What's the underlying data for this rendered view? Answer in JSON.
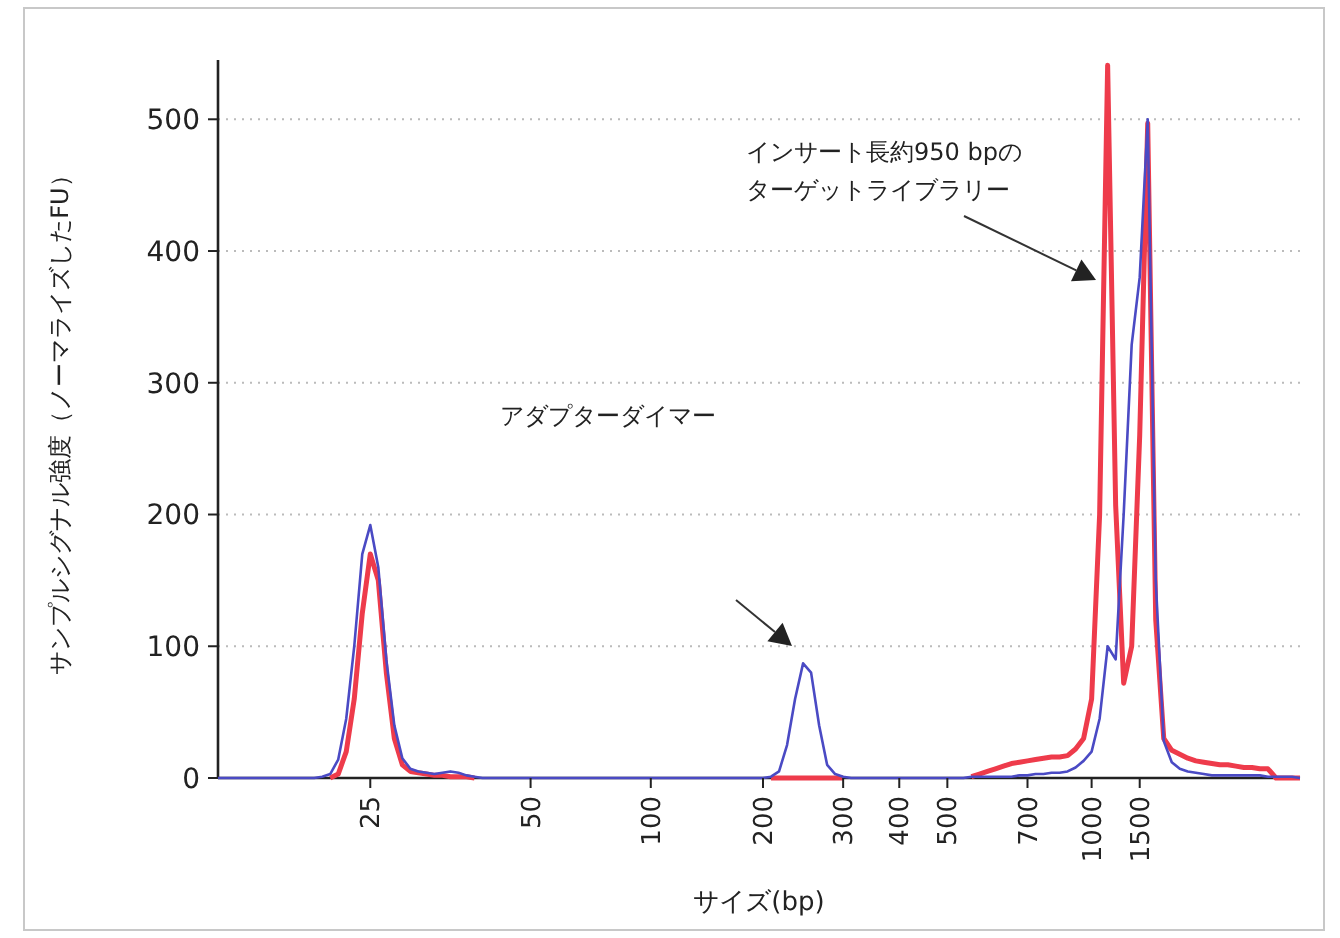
{
  "chart_data": {
    "type": "line",
    "xlabel": "サイズ(bp)",
    "ylabel": "サンプルシグナル強度（ノーマライズしたFU）",
    "categories": [
      null,
      null,
      null,
      null,
      null,
      null,
      null,
      null,
      null,
      null,
      null,
      null,
      null,
      null,
      null,
      null,
      null,
      null,
      null,
      "25",
      null,
      null,
      null,
      null,
      null,
      null,
      null,
      null,
      null,
      null,
      null,
      null,
      null,
      null,
      null,
      null,
      null,
      null,
      null,
      "50",
      null,
      null,
      null,
      null,
      null,
      null,
      null,
      null,
      null,
      null,
      null,
      null,
      null,
      null,
      "100",
      null,
      null,
      null,
      null,
      null,
      null,
      null,
      null,
      null,
      null,
      null,
      null,
      null,
      "200",
      null,
      null,
      null,
      null,
      null,
      null,
      null,
      null,
      null,
      "300",
      null,
      null,
      null,
      null,
      null,
      null,
      "400",
      null,
      null,
      null,
      null,
      null,
      "500",
      null,
      null,
      null,
      null,
      null,
      null,
      null,
      null,
      null,
      "700",
      null,
      null,
      null,
      null,
      null,
      null,
      null,
      "1000",
      null,
      null,
      null,
      null,
      null,
      "1500",
      null,
      null,
      null,
      null,
      null,
      null,
      null,
      null,
      null,
      null,
      null,
      null,
      null,
      null,
      null,
      null,
      null,
      null,
      null,
      null
    ],
    "ylim": [
      0,
      545
    ],
    "yticks": [
      0,
      100,
      200,
      300,
      400,
      500
    ],
    "grid": "y",
    "line_style": "solid",
    "marker": "none",
    "series": [
      {
        "color": "#ee3b4b",
        "values": [
          null,
          null,
          null,
          null,
          null,
          null,
          null,
          null,
          null,
          null,
          null,
          null,
          null,
          null,
          0,
          3,
          20,
          60,
          125,
          170,
          150,
          80,
          30,
          10,
          5,
          4,
          3,
          2,
          2,
          1,
          1,
          1,
          0,
          null,
          null,
          null,
          null,
          null,
          null,
          null,
          null,
          null,
          null,
          null,
          null,
          null,
          null,
          null,
          null,
          null,
          null,
          null,
          null,
          null,
          null,
          null,
          null,
          null,
          null,
          null,
          null,
          null,
          null,
          null,
          null,
          null,
          null,
          null,
          null,
          0,
          0,
          0,
          0,
          0,
          0,
          0,
          0,
          0,
          0,
          null,
          null,
          null,
          null,
          null,
          null,
          null,
          null,
          null,
          null,
          null,
          null,
          null,
          null,
          null,
          1,
          3,
          5,
          7,
          9,
          11,
          12,
          13,
          14,
          15,
          16,
          16,
          17,
          22,
          30,
          60,
          200,
          541,
          207,
          72,
          100,
          260,
          497,
          120,
          30,
          21,
          18,
          15,
          13,
          12,
          11,
          10,
          10,
          9,
          8,
          8,
          7,
          7,
          0,
          0,
          0,
          0
        ]
      },
      {
        "color": "#4a4ac4",
        "values": [
          0,
          0,
          0,
          0,
          0,
          0,
          0,
          0,
          0,
          0,
          0,
          0,
          0,
          1,
          3,
          14,
          45,
          100,
          170,
          192,
          160,
          90,
          40,
          15,
          7,
          5,
          4,
          3,
          4,
          5,
          4,
          2,
          1,
          0,
          0,
          0,
          0,
          0,
          0,
          0,
          0,
          0,
          0,
          0,
          0,
          0,
          0,
          0,
          0,
          0,
          0,
          0,
          0,
          0,
          0,
          0,
          0,
          0,
          0,
          0,
          0,
          0,
          0,
          0,
          0,
          0,
          0,
          0,
          0,
          1,
          5,
          25,
          60,
          87,
          80,
          40,
          10,
          3,
          1,
          0,
          0,
          0,
          0,
          0,
          0,
          0,
          0,
          0,
          0,
          0,
          0,
          0,
          0,
          0,
          1,
          1,
          1,
          1,
          1,
          1,
          2,
          2,
          3,
          3,
          4,
          4,
          5,
          8,
          13,
          20,
          45,
          100,
          90,
          200,
          329,
          380,
          500,
          150,
          28,
          12,
          7,
          5,
          4,
          3,
          2,
          2,
          2,
          2,
          2,
          2,
          2,
          1,
          1,
          1,
          1,
          0
        ]
      }
    ],
    "annotations": [
      "アダプターダイマー",
      "インサート長約950 bpのターゲットライブラリー"
    ]
  }
}
